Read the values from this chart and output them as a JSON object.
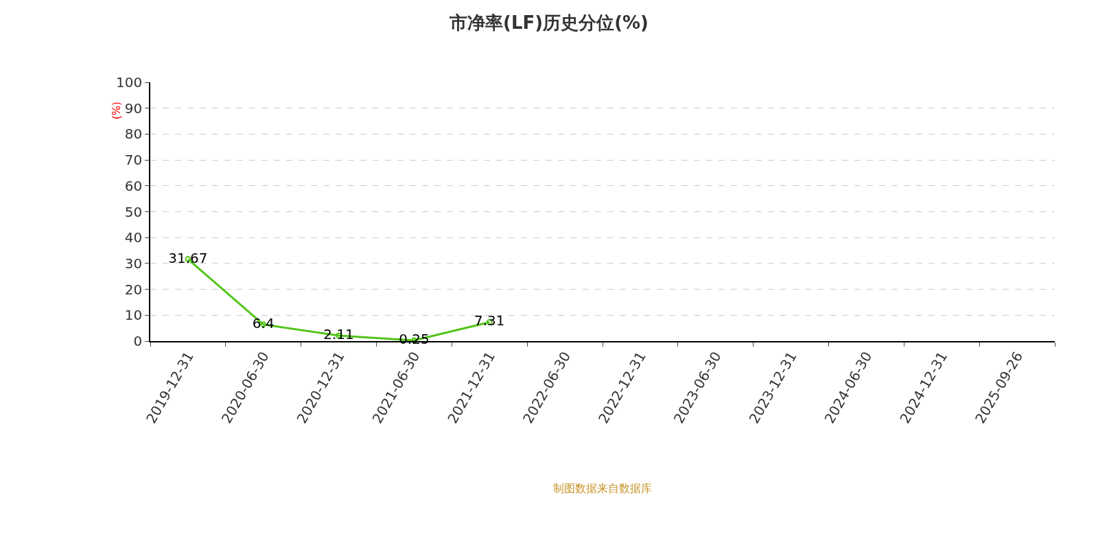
{
  "chart_data": {
    "type": "line",
    "title": "市净率(LF)历史分位(%)",
    "ylabel": "(%)",
    "categories": [
      "2019-12-31",
      "2020-06-30",
      "2020-12-31",
      "2021-06-30",
      "2021-12-31",
      "2022-06-30",
      "2022-12-31",
      "2023-06-30",
      "2023-12-31",
      "2024-06-30",
      "2024-12-31",
      "2025-09-26"
    ],
    "series": [
      {
        "color": "#52c41a",
        "values": [
          31.67,
          6.4,
          2.11,
          0.25,
          7.31,
          null,
          null,
          null,
          null,
          null,
          null,
          null
        ]
      }
    ],
    "ylim": [
      0,
      100
    ],
    "yticks": [
      0,
      10,
      20,
      30,
      40,
      50,
      60,
      70,
      80,
      90,
      100
    ],
    "grid": "y",
    "legend": false,
    "marker": "circle",
    "data_labels": true,
    "annotations": [
      "制图数据来自数据库"
    ]
  }
}
